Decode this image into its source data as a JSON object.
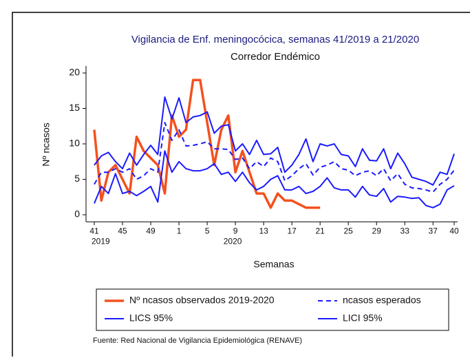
{
  "chart_data": {
    "type": "line",
    "title": "Vigilancia de Enf. meningocócica, semanas 41/2019 a 21/2020",
    "subtitle": "Corredor Endémico",
    "y_label": "Nº ncasos",
    "x_label": "Semanas",
    "source": "Fuente: Red Nacional de Vigilancia Epidemiológica (RENAVE)",
    "categories": [
      "41",
      null,
      null,
      null,
      "45",
      null,
      null,
      null,
      "49",
      null,
      null,
      null,
      "1",
      null,
      null,
      null,
      "5",
      null,
      null,
      null,
      "9",
      null,
      null,
      null,
      "13",
      null,
      null,
      null,
      "17",
      null,
      null,
      null,
      "21",
      null,
      null,
      null,
      "25",
      null,
      null,
      null,
      "29",
      null,
      null,
      null,
      "33",
      null,
      null,
      null,
      "37",
      null,
      null,
      "40"
    ],
    "category_years": [
      "2019",
      null,
      null,
      null,
      null,
      null,
      null,
      null,
      null,
      null,
      null,
      null,
      null,
      null,
      null,
      null,
      null,
      null,
      null,
      null,
      "2020",
      null,
      null,
      null,
      null,
      null,
      null,
      null,
      null,
      null,
      null,
      null,
      null,
      null,
      null,
      null,
      null,
      null,
      null,
      null,
      null,
      null,
      null,
      null,
      null,
      null,
      null,
      null,
      null,
      null,
      null,
      null
    ],
    "ylim": [
      -1,
      21
    ],
    "yticks": [
      0,
      5,
      10,
      15,
      20
    ],
    "grid": false,
    "series": [
      {
        "name": "Nº ncasos observados 2019-2020",
        "color": "#f4511e",
        "linestyle": "solid",
        "values": [
          12,
          2,
          6,
          7,
          5,
          3,
          11,
          9,
          8,
          7,
          3,
          14,
          11,
          12,
          19,
          19,
          13,
          7,
          12,
          14,
          6,
          9,
          6,
          3,
          3,
          1,
          3,
          2,
          2,
          1.5,
          1,
          1,
          1,
          null,
          null,
          null,
          null,
          null,
          null,
          null,
          null,
          null,
          null,
          null,
          null,
          null,
          null,
          null,
          null,
          null,
          null,
          null
        ]
      },
      {
        "name": "ncasos esperados",
        "color": "#1a1aff",
        "linestyle": "dashed",
        "values": [
          4.3,
          6,
          6,
          6.5,
          6,
          6.5,
          5,
          5.5,
          6.5,
          6,
          13,
          10.5,
          12,
          9.7,
          9.8,
          10,
          10.3,
          9.3,
          9.3,
          9.2,
          7.8,
          8,
          6.5,
          7.5,
          6.8,
          8,
          7.5,
          4.8,
          5.5,
          6.5,
          7.2,
          5.6,
          6.7,
          7,
          7.5,
          6.5,
          6.3,
          5.5,
          6,
          6.2,
          5.5,
          6.5,
          4.8,
          5.8,
          4.3,
          3.8,
          3.7,
          3.5,
          3.2,
          4.3,
          5,
          6.3
        ]
      },
      {
        "name": "LICS 95%",
        "color": "#1a1aff",
        "linestyle": "solid",
        "values": [
          7,
          8.3,
          8.8,
          7.5,
          6.5,
          8.7,
          7,
          8.5,
          9.8,
          8.5,
          16.6,
          13.5,
          16.5,
          13,
          13.8,
          14,
          14.5,
          11.5,
          12.5,
          12.7,
          9,
          10,
          8.5,
          10.5,
          8.5,
          8.6,
          9.5,
          6,
          7,
          8.5,
          10.7,
          7.5,
          10,
          9.7,
          10,
          8.5,
          8.3,
          6.8,
          9.3,
          7.7,
          7.6,
          9.3,
          6.5,
          8.7,
          7.2,
          5.3,
          5,
          4.7,
          4.2,
          6,
          5.7,
          8.6
        ]
      },
      {
        "name": "LICI 95%",
        "color": "#1a1aff",
        "linestyle": "solid",
        "values": [
          1.6,
          4,
          3,
          5.8,
          3,
          3.3,
          2.7,
          3.3,
          4,
          1.8,
          9,
          6,
          7.5,
          6.5,
          6.2,
          6.2,
          6.5,
          7.2,
          5.7,
          6,
          4.7,
          6,
          4.5,
          3.5,
          4,
          5,
          5.5,
          3.5,
          3.5,
          4,
          3,
          3.3,
          4,
          5.2,
          3.8,
          3.5,
          3.5,
          2.5,
          4,
          2.8,
          2.6,
          3.7,
          1.8,
          2.6,
          2.5,
          2.3,
          2.4,
          1.3,
          1,
          1.5,
          3.5,
          4.1
        ]
      }
    ]
  }
}
